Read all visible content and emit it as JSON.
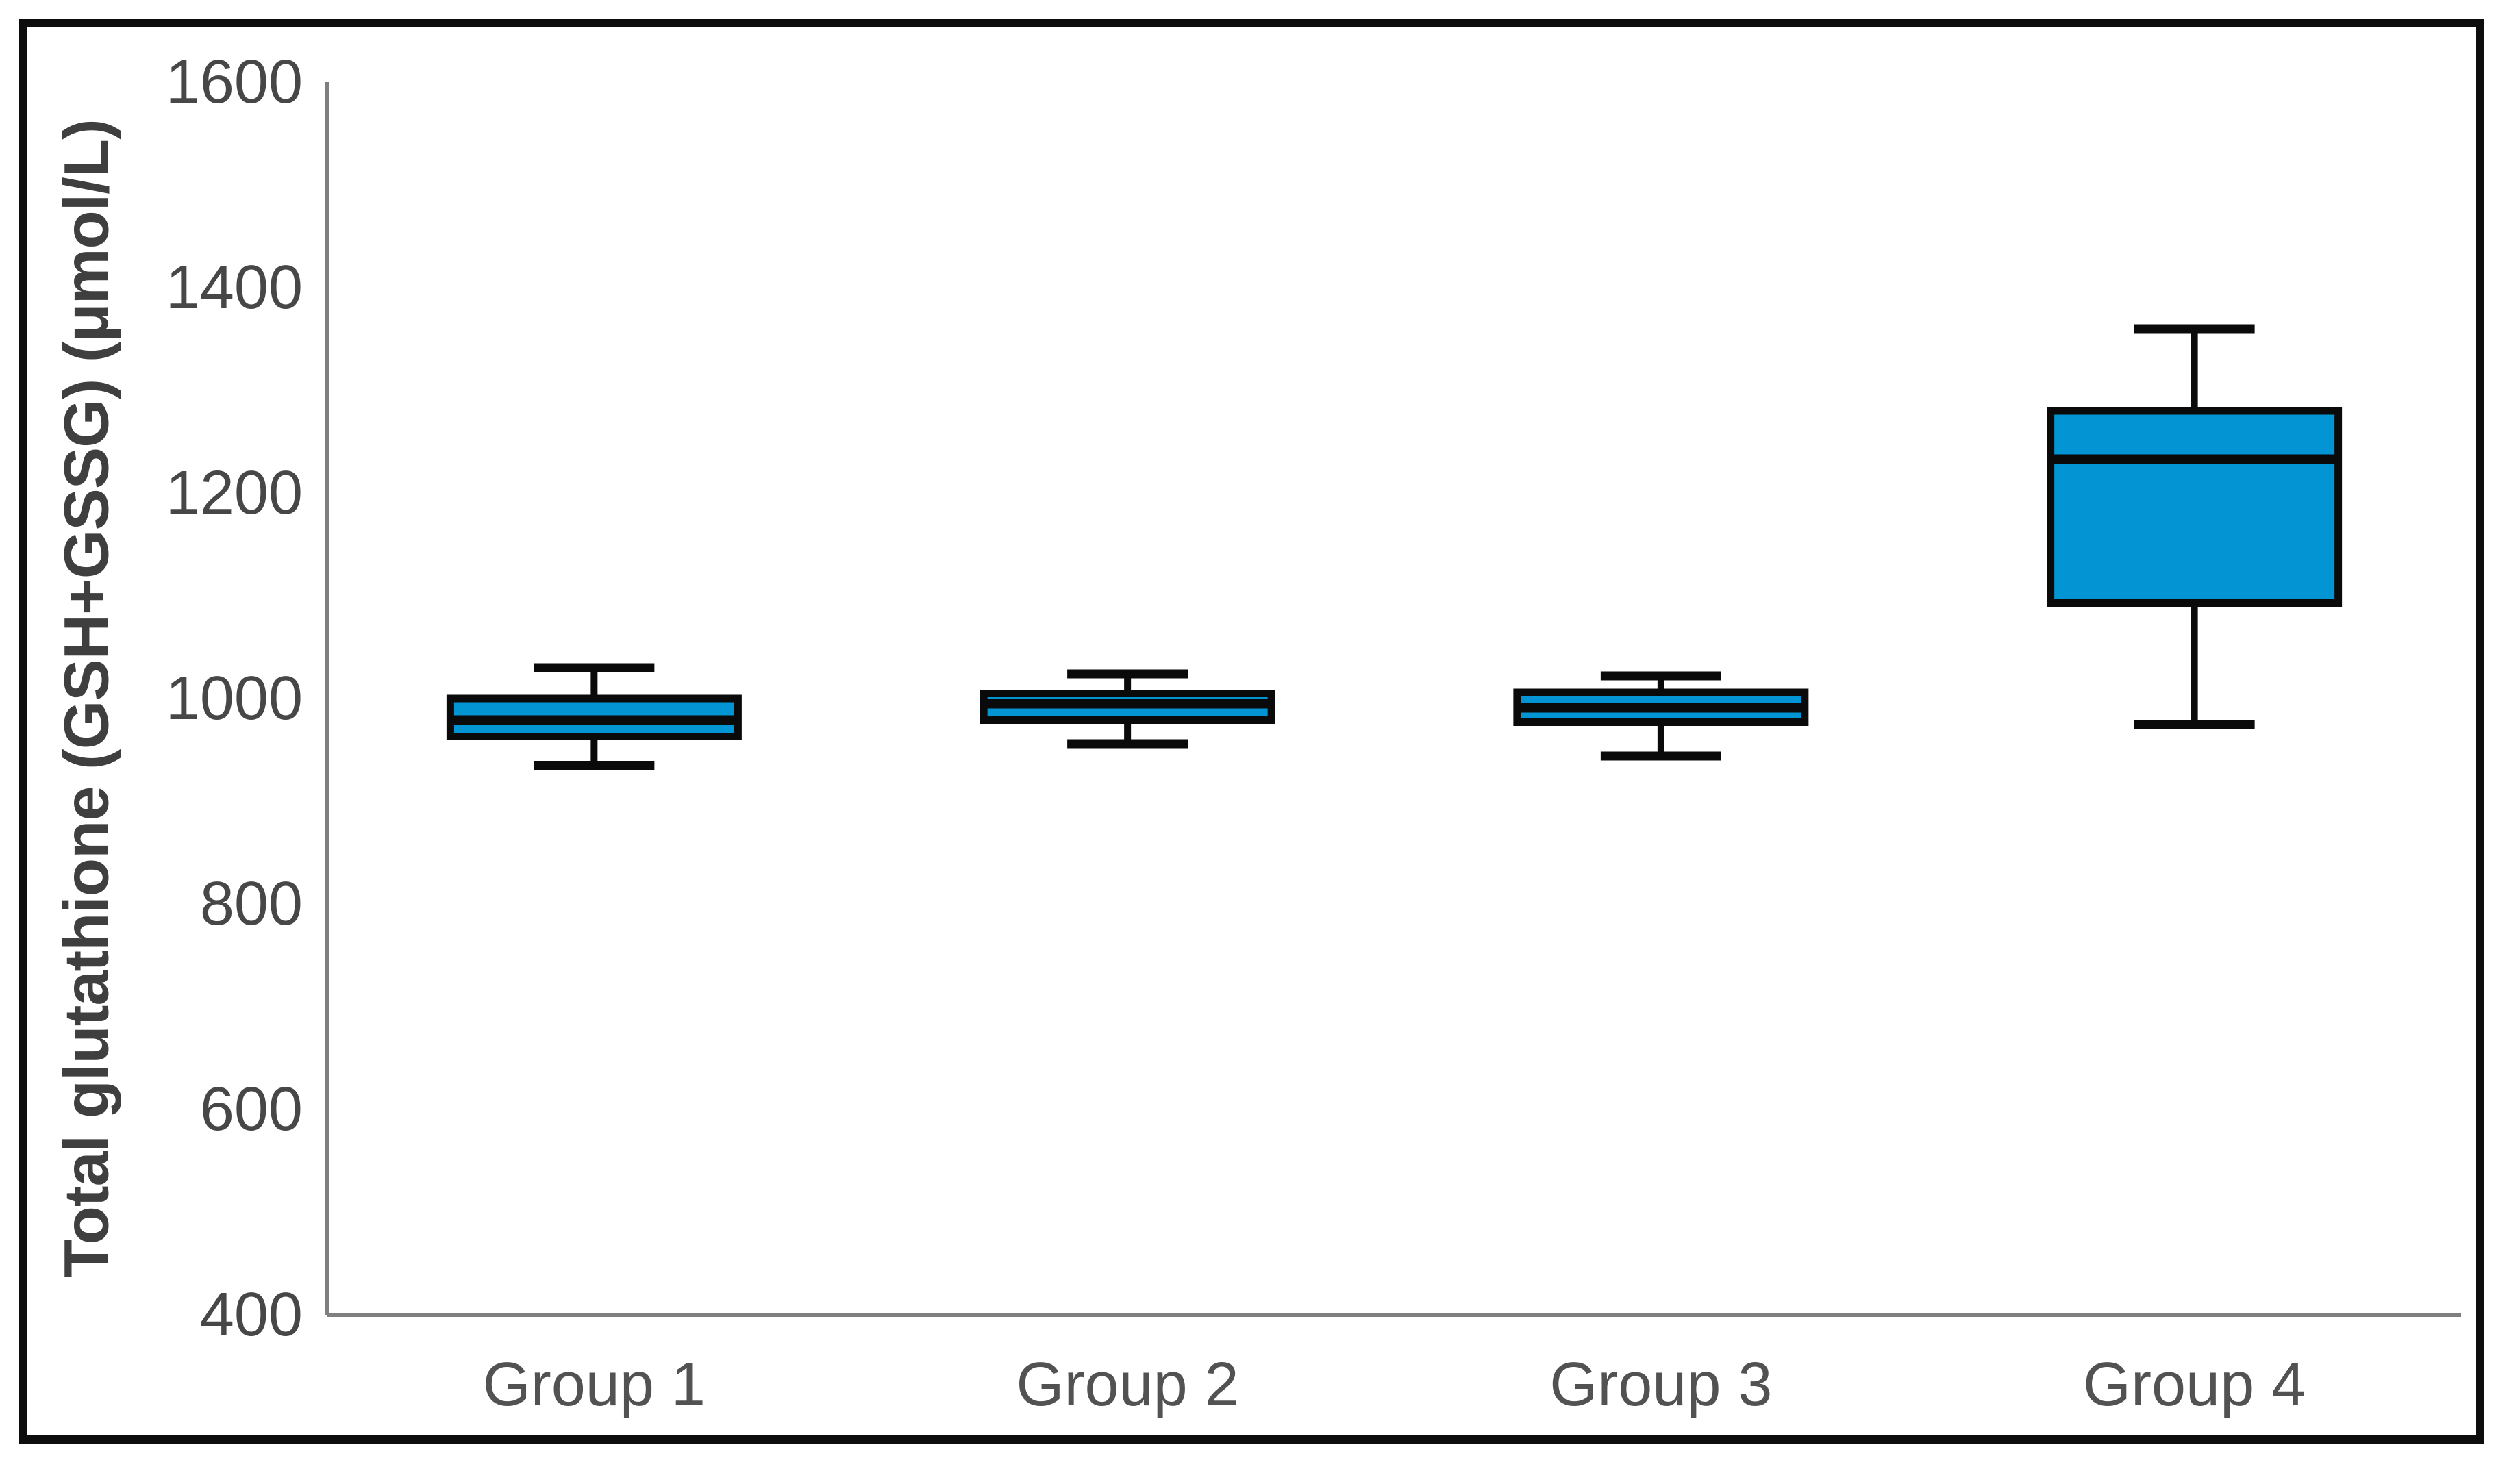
{
  "figure": {
    "frame_border_color": "#0d0d0d",
    "background": "#ffffff"
  },
  "chart_data": {
    "type": "boxplot",
    "title": "",
    "xlabel": "",
    "ylabel": "Total glutathione (GSH+GSSG) (μmol/L)",
    "categories": [
      "Group 1",
      "Group 2",
      "Group 3",
      "Group 4"
    ],
    "y_ticks": [
      400,
      600,
      800,
      1000,
      1200,
      1400,
      1600
    ],
    "ylim": [
      400,
      1600
    ],
    "grid": false,
    "legend": null,
    "series": [
      {
        "name": "Total glutathione (GSH+GSSG)",
        "boxes": [
          {
            "category": "Group 1",
            "min": 935,
            "q1": 963,
            "median": 979,
            "q3": 1000,
            "max": 1030
          },
          {
            "category": "Group 2",
            "min": 956,
            "q1": 979,
            "median": 995,
            "q3": 1005,
            "max": 1024
          },
          {
            "category": "Group 3",
            "min": 944,
            "q1": 977,
            "median": 991,
            "q3": 1006,
            "max": 1022
          },
          {
            "category": "Group 4",
            "min": 975,
            "q1": 1093,
            "median": 1233,
            "q3": 1280,
            "max": 1360
          }
        ]
      }
    ],
    "colors": {
      "box_fill": "#0294d3",
      "box_stroke": "#0a0a0a",
      "median_stroke": "#0a0a0a",
      "whisker_stroke": "#0a0a0a",
      "axis_line": "#7f7f7f",
      "tick_label": "#474747",
      "category_label": "#525252",
      "axis_title": "#3f3f3f"
    }
  }
}
